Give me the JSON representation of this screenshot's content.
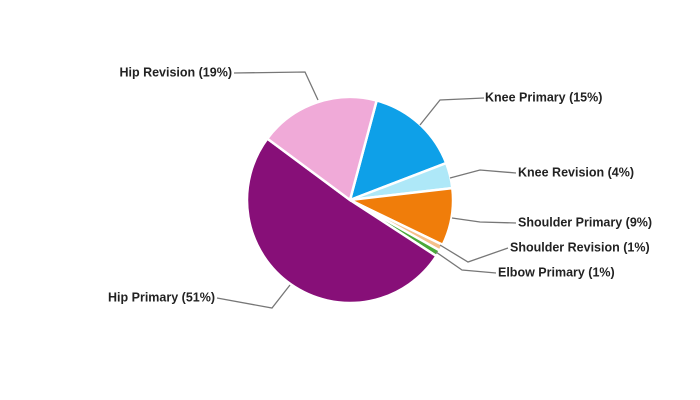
{
  "chart_data": {
    "type": "pie",
    "categories": [
      "Knee Primary (15%)",
      "Knee Revision (4%)",
      "Shoulder Primary (9%)",
      "Shoulder Revision (1%)",
      "Elbow Primary (1%)",
      "Hip Primary (51%)",
      "Hip Revision (19%)"
    ],
    "values": [
      15,
      4,
      9,
      1,
      1,
      51,
      19
    ],
    "colors": [
      "#0ea0e8",
      "#aee8f8",
      "#f07d0a",
      "#f5c08a",
      "#4aa83a",
      "#870f78",
      "#f0aad8"
    ]
  }
}
